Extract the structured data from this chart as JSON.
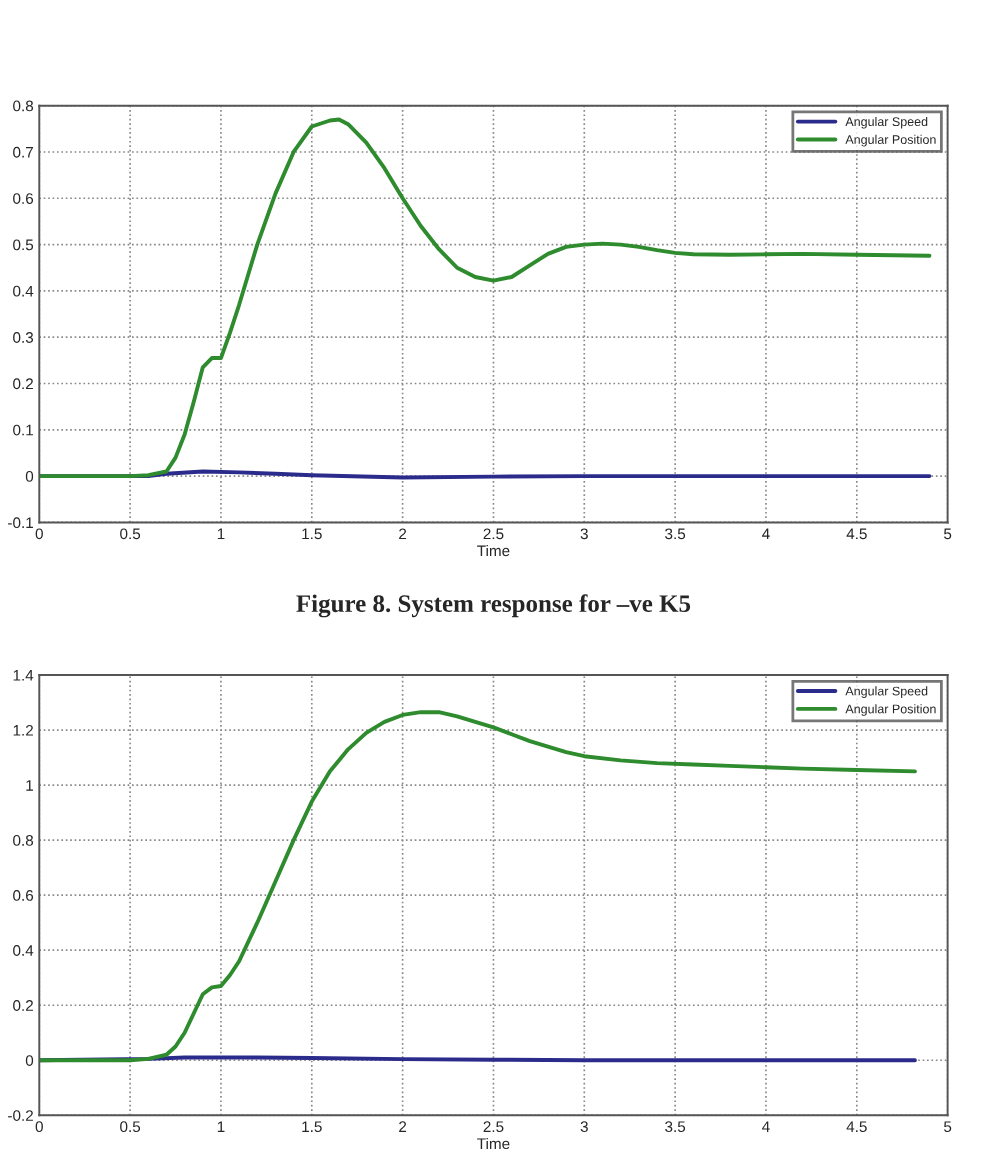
{
  "chart_data": [
    {
      "type": "line",
      "xlabel": "Time",
      "xlim": [
        0,
        5
      ],
      "ylim": [
        -0.1,
        0.8
      ],
      "xticks": [
        0,
        0.5,
        1,
        1.5,
        2,
        2.5,
        3,
        3.5,
        4,
        4.5,
        5
      ],
      "yticks": [
        -0.1,
        0,
        0.1,
        0.2,
        0.3,
        0.4,
        0.5,
        0.6,
        0.7,
        0.8
      ],
      "grid": true,
      "legend": "top right",
      "line_style": "solid",
      "marker": "none",
      "annotations": [
        "Figure 8. System response for –ve K5"
      ],
      "series": [
        {
          "name": "Angular Speed",
          "color": "#2b2b8c",
          "x": [
            0,
            0.6,
            0.7,
            0.9,
            1.1,
            1.3,
            1.5,
            2.0,
            2.5,
            3.0,
            4.9
          ],
          "values": [
            0,
            0,
            0.005,
            0.01,
            0.008,
            0.005,
            0.002,
            -0.003,
            -0.001,
            0,
            0
          ]
        },
        {
          "name": "Angular Position",
          "color": "#2e8b2e",
          "x": [
            0,
            0.5,
            0.6,
            0.7,
            0.75,
            0.8,
            0.85,
            0.9,
            0.95,
            1.0,
            1.05,
            1.1,
            1.2,
            1.3,
            1.4,
            1.5,
            1.6,
            1.65,
            1.7,
            1.8,
            1.9,
            2.0,
            2.1,
            2.2,
            2.3,
            2.4,
            2.5,
            2.6,
            2.7,
            2.8,
            2.9,
            3.0,
            3.1,
            3.2,
            3.3,
            3.4,
            3.5,
            3.6,
            3.8,
            4.0,
            4.2,
            4.5,
            4.9
          ],
          "values": [
            0,
            0,
            0.002,
            0.01,
            0.04,
            0.09,
            0.16,
            0.235,
            0.255,
            0.255,
            0.31,
            0.37,
            0.5,
            0.61,
            0.7,
            0.755,
            0.768,
            0.77,
            0.76,
            0.72,
            0.665,
            0.6,
            0.54,
            0.49,
            0.45,
            0.43,
            0.422,
            0.43,
            0.455,
            0.48,
            0.495,
            0.5,
            0.502,
            0.5,
            0.495,
            0.488,
            0.482,
            0.479,
            0.478,
            0.479,
            0.48,
            0.478,
            0.476
          ]
        }
      ]
    },
    {
      "type": "line",
      "xlabel": "Time",
      "xlim": [
        0,
        5
      ],
      "ylim": [
        -0.2,
        1.4
      ],
      "xticks": [
        0,
        0.5,
        1,
        1.5,
        2,
        2.5,
        3,
        3.5,
        4,
        4.5,
        5
      ],
      "yticks": [
        -0.2,
        0,
        0.2,
        0.4,
        0.6,
        0.8,
        1,
        1.2,
        1.4
      ],
      "grid": true,
      "legend": "top right",
      "line_style": "solid",
      "marker": "none",
      "series": [
        {
          "name": "Angular Speed",
          "color": "#2b2b8c",
          "x": [
            0,
            0.6,
            0.8,
            1.2,
            1.5,
            2.0,
            2.5,
            3.0,
            4.82
          ],
          "values": [
            0,
            0.005,
            0.01,
            0.01,
            0.008,
            0.004,
            0.002,
            0,
            0
          ]
        },
        {
          "name": "Angular Position",
          "color": "#2e8b2e",
          "x": [
            0,
            0.5,
            0.6,
            0.7,
            0.75,
            0.8,
            0.85,
            0.9,
            0.95,
            1.0,
            1.05,
            1.1,
            1.2,
            1.3,
            1.4,
            1.5,
            1.6,
            1.7,
            1.8,
            1.9,
            2.0,
            2.1,
            2.2,
            2.3,
            2.4,
            2.5,
            2.6,
            2.7,
            2.8,
            2.9,
            3.0,
            3.2,
            3.4,
            3.6,
            3.8,
            4.0,
            4.2,
            4.5,
            4.82
          ],
          "values": [
            0,
            0,
            0.005,
            0.02,
            0.05,
            0.1,
            0.17,
            0.24,
            0.265,
            0.27,
            0.31,
            0.36,
            0.5,
            0.65,
            0.8,
            0.94,
            1.05,
            1.13,
            1.19,
            1.23,
            1.255,
            1.265,
            1.265,
            1.25,
            1.23,
            1.21,
            1.185,
            1.16,
            1.14,
            1.12,
            1.105,
            1.09,
            1.08,
            1.075,
            1.07,
            1.065,
            1.06,
            1.055,
            1.05
          ]
        }
      ]
    }
  ]
}
